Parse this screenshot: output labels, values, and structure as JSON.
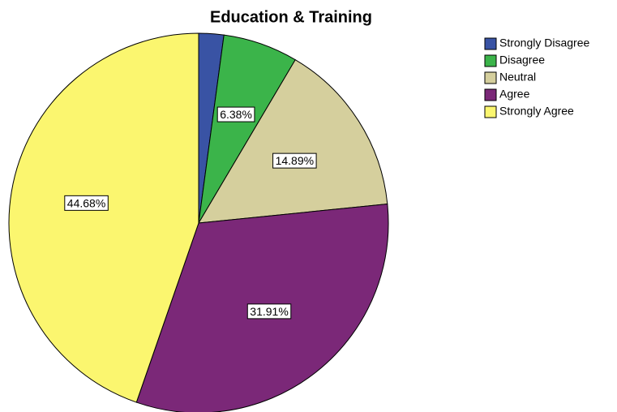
{
  "chart_data": {
    "type": "pie",
    "title": "Education & Training",
    "categories": [
      "Strongly Disagree",
      "Disagree",
      "Neutral",
      "Agree",
      "Strongly Agree"
    ],
    "values": [
      2.13,
      6.38,
      14.89,
      31.91,
      44.68
    ],
    "value_labels": [
      null,
      "6.38%",
      "14.89%",
      "31.91%",
      "44.68%"
    ],
    "colors": [
      "#3953a4",
      "#3bb44a",
      "#d5cf9d",
      "#7b2878",
      "#fbf66f"
    ]
  }
}
